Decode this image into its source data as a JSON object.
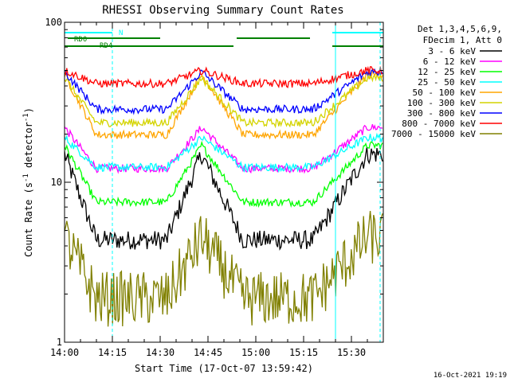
{
  "chart_data": {
    "type": "line",
    "title": "RHESSI Observing Summary Count Rates",
    "xlabel": "Start Time (17-Oct-07 13:59:42)",
    "ylabel": "Count Rate (s",
    "ylabel_sup": "-1",
    "ylabel_tail": " detector",
    "ylabel_tail_sup": "-1",
    "ylabel_close": ")",
    "y_scale": "log",
    "ylim": [
      1,
      100
    ],
    "xlim_minutes": [
      0,
      100
    ],
    "y_tick_labels": [
      {
        "label": "1",
        "value": 1
      },
      {
        "label": "10",
        "value": 10
      },
      {
        "label": "100",
        "value": 100
      }
    ],
    "x_tick_labels": [
      {
        "label": "14:00",
        "minute": 0
      },
      {
        "label": "14:15",
        "minute": 15
      },
      {
        "label": "14:30",
        "minute": 30
      },
      {
        "label": "14:45",
        "minute": 45
      },
      {
        "label": "15:00",
        "minute": 60
      },
      {
        "label": "15:15",
        "minute": 75
      },
      {
        "label": "15:30",
        "minute": 90
      }
    ],
    "legend_header": [
      "Det 1,3,4,5,6,9,",
      "FDecim 1, Att 0"
    ],
    "legend_placement": "right",
    "series": [
      {
        "name": "3 - 6 keV",
        "color": "#000000",
        "high": 15,
        "low": 3.5
      },
      {
        "name": "6 - 12 keV",
        "color": "#ff00ff",
        "high": 22,
        "low": 11
      },
      {
        "name": "12 - 25 keV",
        "color": "#00ff00",
        "high": 17,
        "low": 6.5
      },
      {
        "name": "25 - 50 keV",
        "color": "#00ffff",
        "high": 19,
        "low": 11.5
      },
      {
        "name": "50 - 100 keV",
        "color": "#ffa500",
        "high": 47,
        "low": 17
      },
      {
        "name": "100 - 300 keV",
        "color": "#d4d400",
        "high": 45,
        "low": 21
      },
      {
        "name": "300 - 800 keV",
        "color": "#0000ff",
        "high": 49,
        "low": 26
      },
      {
        "name": "800 - 7000 keV",
        "color": "#ff0000",
        "high": 50,
        "low": 40
      },
      {
        "name": "7000 - 15000 keV",
        "color": "#808000",
        "high": 4.5,
        "low": 1.6
      }
    ],
    "annotations": {
      "flag_labels": [
        "N",
        "RD0",
        "RD4"
      ],
      "vertical_markers_minutes": [
        0,
        15,
        85,
        99
      ]
    },
    "footer_date": "16-Oct-2021 19:19",
    "colors": {
      "cyan": "#00ffff",
      "green": "#008000"
    }
  }
}
